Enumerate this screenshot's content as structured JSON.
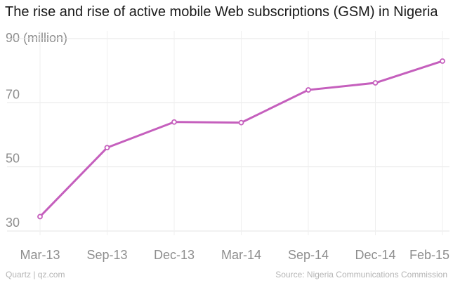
{
  "chart_data": {
    "type": "line",
    "title": "The rise and rise of active mobile Web subscriptions (GSM) in Nigeria",
    "ylabel": "(million)",
    "xlabel": "",
    "categories": [
      "Mar-13",
      "Sep-13",
      "Dec-13",
      "Mar-14",
      "Sep-14",
      "Dec-14",
      "Feb-15"
    ],
    "series": [
      {
        "values": [
          34.5,
          56,
          64,
          63.8,
          74,
          76.2,
          83
        ]
      }
    ],
    "yticks": [
      30,
      50,
      70,
      90
    ],
    "ylim": [
      30,
      90
    ],
    "grid": true,
    "color": "#c55fbd"
  },
  "footer": {
    "credit": "Quartz | qz.com",
    "source": "Source: Nigeria Communications Commission"
  }
}
